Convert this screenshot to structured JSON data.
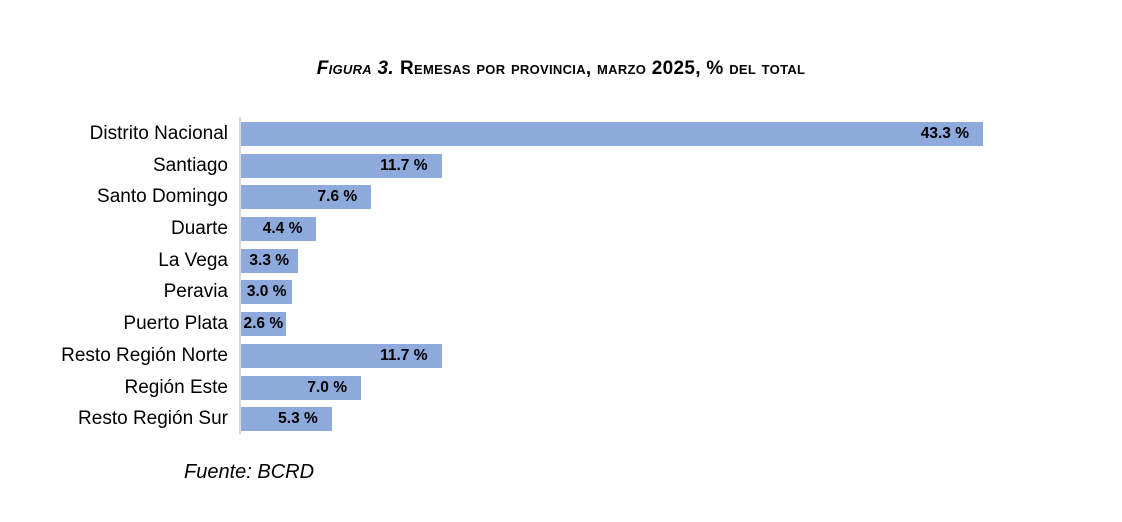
{
  "title": {
    "prefix": "Figura 3.",
    "main": "Remesas por provincia, marzo 2025, % del total"
  },
  "source": "Fuente: BCRD",
  "colors": {
    "bar": "#8EA9DB",
    "axis_line": "#D9D9D9",
    "text": "#000000"
  },
  "chart_data": {
    "type": "bar",
    "orientation": "horizontal",
    "title": "Figura 3. Remesas por provincia, marzo 2025, % del total",
    "categories": [
      "Distrito Nacional",
      "Santiago",
      "Santo Domingo",
      "Duarte",
      "La Vega",
      "Peravia",
      "Puerto Plata",
      "Resto Región Norte",
      "Región Este",
      "Resto Región Sur"
    ],
    "values": [
      43.3,
      11.7,
      7.6,
      4.4,
      3.3,
      3.0,
      2.6,
      11.7,
      7.0,
      5.3
    ],
    "value_labels": [
      "43.3 %",
      "11.7 %",
      "7.6 %",
      "4.4 %",
      "3.3 %",
      "3.0 %",
      "2.6 %",
      "11.7 %",
      "7.0 %",
      "5.3 %"
    ],
    "unit": "%",
    "xlabel": "",
    "ylabel": "",
    "xlim": [
      0,
      43.3
    ],
    "grid": false,
    "legend": false,
    "source": "Fuente: BCRD"
  }
}
